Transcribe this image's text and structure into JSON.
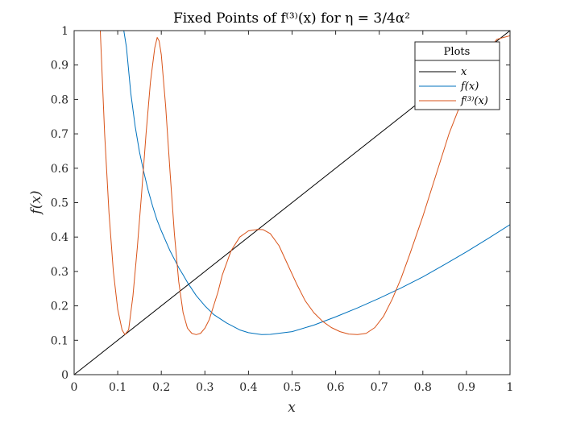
{
  "chart_data": {
    "type": "line",
    "title": "Fixed Points of f⁽³⁾(x) for η = 3/4α²",
    "xlabel": "x",
    "ylabel": "f(x)",
    "xlim": [
      0,
      1
    ],
    "ylim": [
      0,
      1
    ],
    "x_ticks": [
      "0",
      "0.1",
      "0.2",
      "0.3",
      "0.4",
      "0.5",
      "0.6",
      "0.7",
      "0.8",
      "0.9",
      "1"
    ],
    "y_ticks": [
      "0",
      "0.1",
      "0.2",
      "0.3",
      "0.4",
      "0.5",
      "0.6",
      "0.7",
      "0.8",
      "0.9",
      "1"
    ],
    "grid": false,
    "box": true,
    "legend": {
      "title": "Plots",
      "placement": "top-right",
      "entries": [
        "x",
        "f(x)",
        "f⁽³⁾(x)"
      ]
    },
    "series": [
      {
        "name": "x",
        "color": "#000000",
        "x": [
          0,
          1
        ],
        "y": [
          0,
          1
        ]
      },
      {
        "name": "f(x)",
        "color": "#0072BD",
        "x": [
          0.114,
          0.12,
          0.13,
          0.14,
          0.15,
          0.16,
          0.17,
          0.18,
          0.19,
          0.2,
          0.22,
          0.24,
          0.25,
          0.26,
          0.28,
          0.3,
          0.32,
          0.35,
          0.38,
          0.4,
          0.43,
          0.45,
          0.5,
          0.55,
          0.6,
          0.65,
          0.7,
          0.75,
          0.8,
          0.85,
          0.9,
          0.95,
          1.0
        ],
        "y": [
          1.0,
          0.952,
          0.818,
          0.722,
          0.647,
          0.588,
          0.535,
          0.49,
          0.45,
          0.418,
          0.36,
          0.311,
          0.29,
          0.268,
          0.23,
          0.2,
          0.175,
          0.15,
          0.13,
          0.122,
          0.1164,
          0.117,
          0.125,
          0.144,
          0.168,
          0.194,
          0.222,
          0.252,
          0.284,
          0.32,
          0.357,
          0.396,
          0.436
        ]
      },
      {
        "name": "f⁽³⁾(x)",
        "color": "#D95319",
        "x": [
          0.06,
          0.07,
          0.08,
          0.09,
          0.1,
          0.11,
          0.1164,
          0.125,
          0.135,
          0.145,
          0.155,
          0.165,
          0.175,
          0.185,
          0.1906,
          0.195,
          0.2,
          0.21,
          0.22,
          0.23,
          0.24,
          0.25,
          0.26,
          0.27,
          0.28,
          0.29,
          0.3,
          0.31,
          0.32,
          0.33,
          0.34,
          0.36,
          0.38,
          0.4,
          0.42,
          0.4335,
          0.45,
          0.47,
          0.49,
          0.51,
          0.53,
          0.55,
          0.57,
          0.59,
          0.61,
          0.63,
          0.65,
          0.67,
          0.69,
          0.71,
          0.73,
          0.75,
          0.77,
          0.8,
          0.83,
          0.86,
          0.9,
          0.94,
          0.97,
          1.0
        ],
        "y": [
          1.0,
          0.7,
          0.47,
          0.3,
          0.19,
          0.13,
          0.1164,
          0.13,
          0.23,
          0.37,
          0.53,
          0.7,
          0.85,
          0.95,
          0.98,
          0.97,
          0.93,
          0.78,
          0.59,
          0.41,
          0.27,
          0.18,
          0.135,
          0.12,
          0.1164,
          0.12,
          0.135,
          0.16,
          0.2,
          0.24,
          0.29,
          0.36,
          0.4,
          0.418,
          0.422,
          0.4215,
          0.41,
          0.375,
          0.32,
          0.265,
          0.215,
          0.18,
          0.155,
          0.137,
          0.125,
          0.118,
          0.1164,
          0.12,
          0.137,
          0.17,
          0.22,
          0.28,
          0.35,
          0.46,
          0.58,
          0.7,
          0.83,
          0.93,
          0.975,
          0.985
        ]
      }
    ]
  }
}
